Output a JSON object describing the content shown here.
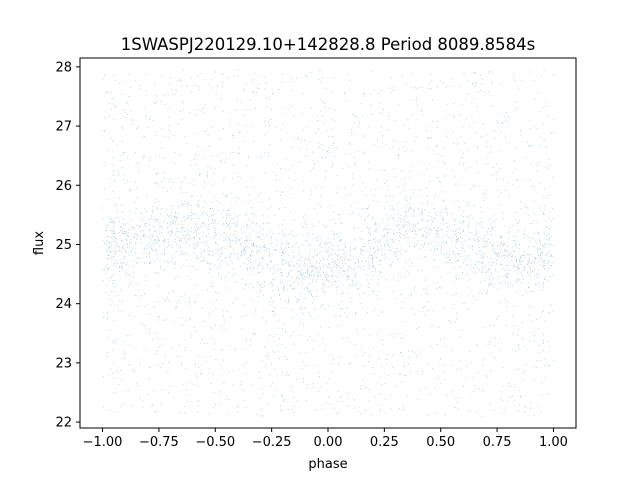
{
  "chart_data": {
    "type": "scatter",
    "title": "1SWASPJ220129.10+142828.8 Period 8089.8584s",
    "xlabel": "phase",
    "ylabel": "flux",
    "xlim": [
      -1.1,
      1.1
    ],
    "ylim": [
      21.9,
      28.15
    ],
    "x_ticks": [
      -1.0,
      -0.75,
      -0.5,
      -0.25,
      0.0,
      0.25,
      0.5,
      0.75,
      1.0
    ],
    "x_tick_labels": [
      "−1.00",
      "−0.75",
      "−0.50",
      "−0.25",
      "0.00",
      "0.25",
      "0.50",
      "0.75",
      "1.00"
    ],
    "y_ticks": [
      22,
      23,
      24,
      25,
      26,
      27,
      28
    ],
    "y_tick_labels": [
      "22",
      "23",
      "24",
      "25",
      "26",
      "27",
      "28"
    ],
    "grid": false,
    "legend": "none",
    "marker_color": "#1f77b4",
    "series": [
      {
        "x_range": [
          -1.0,
          1.0
        ],
        "flux_range": [
          22.1,
          27.95
        ],
        "mean_flux_by_phase": {
          "phase": [
            -1.0,
            -0.85,
            -0.7,
            -0.6,
            -0.5,
            -0.4,
            -0.3,
            -0.2,
            -0.1,
            0.0,
            0.1,
            0.2,
            0.3,
            0.4,
            0.5,
            0.6,
            0.7,
            0.8,
            0.9,
            1.0
          ],
          "flux": [
            24.9,
            25.05,
            25.3,
            25.35,
            25.2,
            25.05,
            24.85,
            24.7,
            24.6,
            24.6,
            24.7,
            24.95,
            25.25,
            25.35,
            25.2,
            25.0,
            24.85,
            24.75,
            24.75,
            24.85
          ]
        },
        "core_scatter_halfwidth": 0.65
      }
    ]
  }
}
